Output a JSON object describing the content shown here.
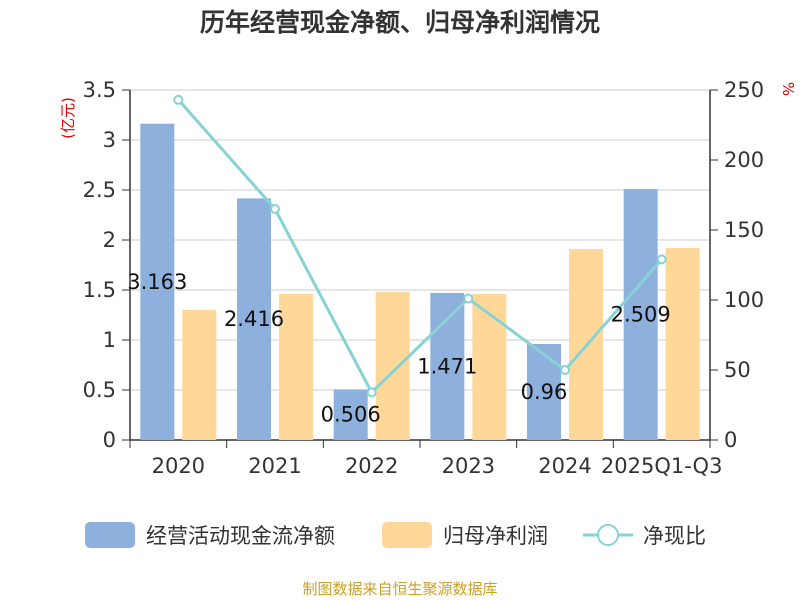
{
  "chart_data": {
    "type": "bar",
    "title": "历年经营现金净额、归母净利润情况",
    "categories": [
      "2020",
      "2021",
      "2022",
      "2023",
      "2024",
      "2025Q1-Q3"
    ],
    "y_left_label": "(亿元)",
    "y_right_label": "%",
    "ylim_left": [
      0,
      3.5
    ],
    "ylim_right": [
      0,
      250
    ],
    "y_left_ticks": [
      "0",
      "0.5",
      "1",
      "1.5",
      "2",
      "2.5",
      "3",
      "3.5"
    ],
    "y_right_ticks": [
      "0",
      "50",
      "100",
      "150",
      "200",
      "250"
    ],
    "grid": true,
    "legend_position": "bottom",
    "series": [
      {
        "name": "经营活动现金流净额",
        "type": "bar",
        "axis": "left",
        "color": "#8eb0dd",
        "values": [
          3.163,
          2.416,
          0.506,
          1.471,
          0.96,
          2.509
        ],
        "labels": [
          "3.163",
          "2.416",
          "0.506",
          "1.471",
          "0.96",
          "2.509"
        ]
      },
      {
        "name": "归母净利润",
        "type": "bar",
        "axis": "left",
        "color": "#ffd899",
        "values": [
          1.3,
          1.46,
          1.48,
          1.46,
          1.91,
          1.92
        ]
      },
      {
        "name": "净现比",
        "type": "line",
        "axis": "right",
        "color": "#87d2d5",
        "values": [
          243,
          165,
          34,
          101,
          50,
          129
        ]
      }
    ],
    "source": "制图数据来自恒生聚源数据库"
  }
}
